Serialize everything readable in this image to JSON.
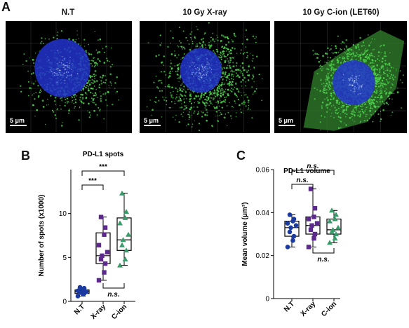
{
  "panels": {
    "a": {
      "letter": "A",
      "images": [
        {
          "title": "N.T",
          "scale_label": "5 μm",
          "style": "sparse"
        },
        {
          "title": "10 Gy X-ray",
          "scale_label": "5 μm",
          "style": "dense"
        },
        {
          "title": "10 Gy C-ion (LET60)",
          "scale_label": "5 μm",
          "style": "cell"
        }
      ]
    },
    "b": {
      "letter": "B"
    },
    "c": {
      "letter": "C"
    }
  },
  "colors": {
    "nt": "#1a3aa0",
    "xray": "#5b2a8c",
    "cion": "#3a9a6a",
    "nucleus": "#2233cc",
    "spots": "#4ed04e"
  },
  "chart_data": [
    {
      "type": "box",
      "title": "PD-L1 spots",
      "ylabel": "Number of spots (x1000)",
      "categories": [
        "N.T",
        "X-ray",
        "C-ion"
      ],
      "ylim": [
        0,
        15
      ],
      "yticks": [
        0,
        5,
        10
      ],
      "series": [
        {
          "name": "N.T",
          "marker": "circle",
          "box": {
            "min": 0.6,
            "q1": 0.9,
            "median": 1.1,
            "q3": 1.3,
            "max": 1.6
          },
          "points": [
            0.6,
            0.8,
            0.9,
            1.0,
            1.1,
            1.1,
            1.2,
            1.3,
            1.5,
            1.6
          ]
        },
        {
          "name": "X-ray",
          "marker": "square",
          "box": {
            "min": 2.4,
            "q1": 4.3,
            "median": 5.2,
            "q3": 7.8,
            "max": 9.6
          },
          "points": [
            2.4,
            3.3,
            4.3,
            4.8,
            5.2,
            5.6,
            6.4,
            7.6,
            8.4,
            9.6
          ]
        },
        {
          "name": "C-ion",
          "marker": "triangle",
          "box": {
            "min": 4.1,
            "q1": 5.8,
            "median": 7.0,
            "q3": 9.5,
            "max": 12.3
          },
          "points": [
            4.1,
            4.8,
            5.8,
            6.4,
            7.0,
            7.6,
            8.9,
            9.5,
            10.2,
            12.3
          ]
        }
      ],
      "annotations": [
        {
          "from": "N.T",
          "to": "X-ray",
          "label": "***",
          "position": "above"
        },
        {
          "from": "N.T",
          "to": "C-ion",
          "label": "***",
          "position": "above"
        },
        {
          "from": "X-ray",
          "to": "C-ion",
          "label": "n.s.",
          "position": "below"
        }
      ]
    },
    {
      "type": "box",
      "title": "PD-L1 volume",
      "ylabel": "Mean volume (μm³)",
      "categories": [
        "N.T",
        "X-ray",
        "C-ion"
      ],
      "ylim": [
        0,
        0.06
      ],
      "yticks": [
        0,
        0.02,
        0.04,
        0.06
      ],
      "series": [
        {
          "name": "N.T",
          "marker": "circle",
          "box": {
            "min": 0.024,
            "q1": 0.029,
            "median": 0.033,
            "q3": 0.036,
            "max": 0.039
          },
          "points": [
            0.024,
            0.027,
            0.029,
            0.031,
            0.033,
            0.034,
            0.035,
            0.036,
            0.037,
            0.039
          ]
        },
        {
          "name": "X-ray",
          "marker": "square",
          "box": {
            "min": 0.024,
            "q1": 0.03,
            "median": 0.034,
            "q3": 0.038,
            "max": 0.051
          },
          "points": [
            0.024,
            0.028,
            0.03,
            0.032,
            0.034,
            0.035,
            0.037,
            0.038,
            0.042,
            0.051
          ]
        },
        {
          "name": "C-ion",
          "marker": "triangle",
          "box": {
            "min": 0.026,
            "q1": 0.03,
            "median": 0.032,
            "q3": 0.037,
            "max": 0.041
          },
          "points": [
            0.026,
            0.028,
            0.03,
            0.031,
            0.032,
            0.033,
            0.036,
            0.037,
            0.039,
            0.041
          ]
        }
      ],
      "annotations": [
        {
          "from": "N.T",
          "to": "X-ray",
          "label": "n.s.",
          "position": "above"
        },
        {
          "from": "N.T",
          "to": "C-ion",
          "label": "n.s.",
          "position": "above"
        },
        {
          "from": "X-ray",
          "to": "C-ion",
          "label": "n.s.",
          "position": "below"
        }
      ]
    }
  ]
}
